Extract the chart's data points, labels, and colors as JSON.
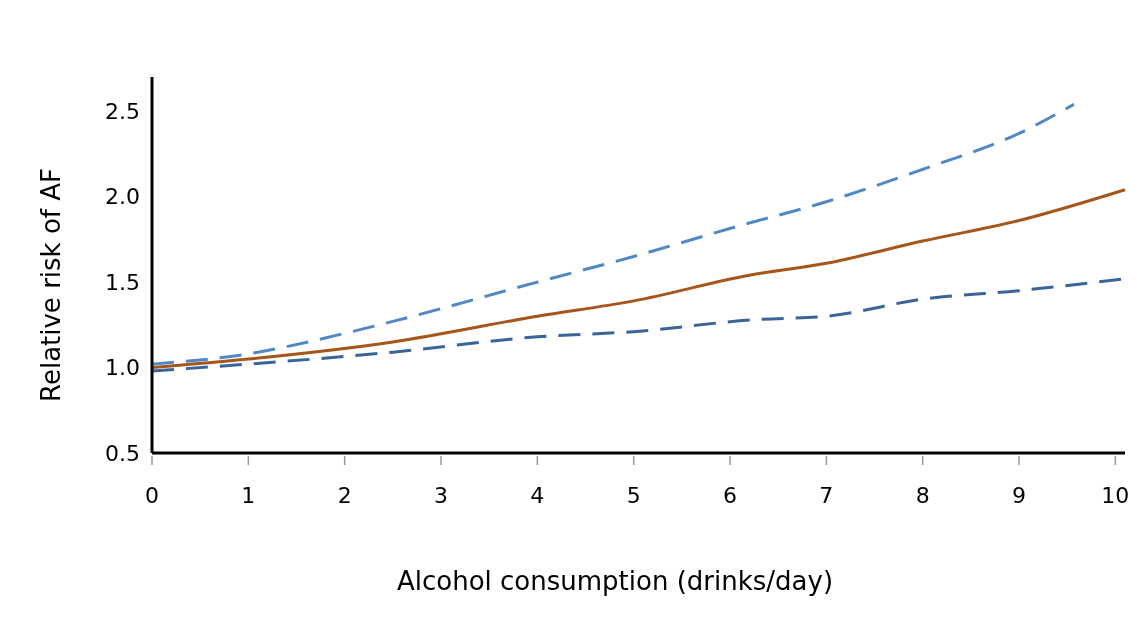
{
  "chart_data": {
    "type": "line",
    "xlabel": "Alcohol consumption (drinks/day)",
    "ylabel": "Relative risk of AF",
    "xlim": [
      0,
      10.1
    ],
    "xticks": [
      0,
      1,
      2,
      3,
      4,
      5,
      6,
      7,
      8,
      9,
      10
    ],
    "ylim": [
      0.5,
      2.7
    ],
    "yticks": [
      {
        "value": 0.5,
        "label": "0.5"
      },
      {
        "value": 1,
        "label": "1.0"
      },
      {
        "value": 1.5,
        "label": "1.5"
      },
      {
        "value": 2,
        "label": "2.0"
      },
      {
        "value": 2.5,
        "label": "2.5"
      }
    ],
    "grid": false,
    "marker": "none",
    "series": [
      {
        "color": "#4f88c6",
        "line_style": "dashed",
        "x": [
          0,
          1,
          2,
          2.5,
          4,
          5,
          6.1,
          7,
          8,
          9,
          9.57
        ],
        "values": [
          1.02,
          1.08,
          1.2,
          1.27,
          1.5,
          1.65,
          1.83,
          1.97,
          2.16,
          2.37,
          2.54
        ]
      },
      {
        "color": "#3a6599",
        "line_style": "dashed",
        "x": [
          0,
          1,
          2.5,
          4,
          5,
          6.25,
          7,
          8,
          9,
          10.1
        ],
        "values": [
          0.98,
          1.02,
          1.09,
          1.18,
          1.21,
          1.28,
          1.3,
          1.4,
          1.45,
          1.52
        ]
      },
      {
        "color": "#a6561a",
        "line_style": "solid",
        "x": [
          0,
          1,
          2.5,
          4,
          5,
          6.2,
          7,
          8,
          9,
          10.1
        ],
        "values": [
          1.0,
          1.05,
          1.15,
          1.3,
          1.39,
          1.54,
          1.61,
          1.74,
          1.86,
          2.04
        ]
      }
    ]
  }
}
